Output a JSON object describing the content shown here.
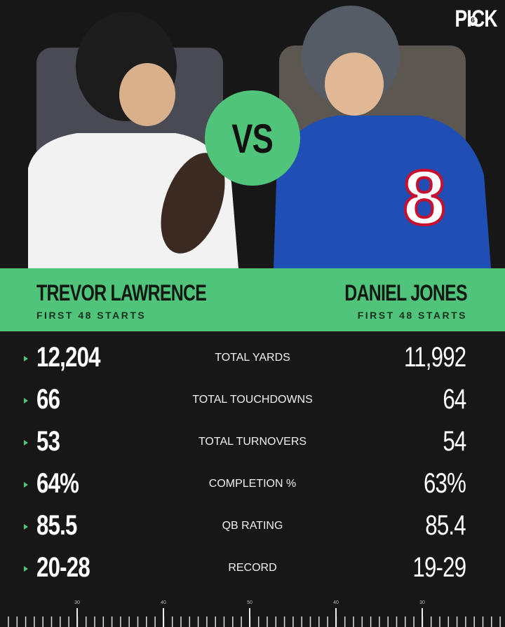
{
  "logo": {
    "text": "PICK",
    "badge": "6"
  },
  "vs": "VS",
  "left_player": {
    "name": "TREVOR LAWRENCE",
    "subtitle": "FIRST 48 STARTS"
  },
  "right_player": {
    "name": "DANIEL JONES",
    "subtitle": "FIRST 48 STARTS"
  },
  "stats": [
    {
      "label": "TOTAL YARDS",
      "left": "12,204",
      "right": "11,992"
    },
    {
      "label": "TOTAL TOUCHDOWNS",
      "left": "66",
      "right": "64"
    },
    {
      "label": "TOTAL TURNOVERS",
      "left": "53",
      "right": "54"
    },
    {
      "label": "COMPLETION %",
      "left": "64%",
      "right": "63%"
    },
    {
      "label": "QB RATING",
      "left": "85.5",
      "right": "85.4"
    },
    {
      "label": "RECORD",
      "left": "20-28",
      "right": "19-29"
    }
  ],
  "field_numbers": [
    "30",
    "40",
    "50",
    "40",
    "30"
  ]
}
